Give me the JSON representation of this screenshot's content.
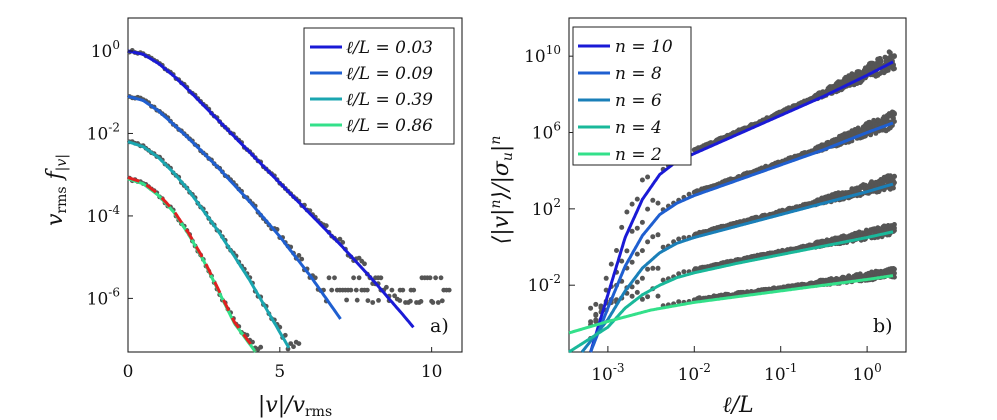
{
  "chart_data": [
    {
      "type": "line",
      "panel_label": "a)",
      "xlabel": "|v|/v_rms",
      "ylabel": "v_rms f_|v|",
      "xlim": [
        0,
        11
      ],
      "ylim_log10": [
        -7.3,
        0.8
      ],
      "yscale": "log",
      "x_ticks": [
        "0",
        "5",
        "10"
      ],
      "y_ticks": [
        "10^0",
        "10^-2",
        "10^-4",
        "10^-6"
      ],
      "legend_position": "top-right",
      "series": [
        {
          "name": "ℓ/L = 0.03",
          "color": "#1a1ad6",
          "x": [
            0,
            0.5,
            1,
            1.5,
            2,
            3,
            4,
            5,
            6,
            7,
            8,
            9,
            9.4
          ],
          "log10y": [
            0,
            -0.08,
            -0.3,
            -0.6,
            -0.95,
            -1.7,
            -2.45,
            -3.2,
            -3.95,
            -4.7,
            -5.5,
            -6.35,
            -6.7
          ]
        },
        {
          "name": "ℓ/L = 0.09",
          "color": "#1f5fd0",
          "x": [
            0,
            0.5,
            1,
            1.5,
            2,
            3,
            4,
            5,
            6,
            7
          ],
          "log10y": [
            -1.1,
            -1.2,
            -1.45,
            -1.78,
            -2.12,
            -2.85,
            -3.65,
            -4.5,
            -5.45,
            -6.5
          ]
        },
        {
          "name": "ℓ/L = 0.39",
          "color": "#1aa6b0",
          "x": [
            0,
            0.5,
            1,
            1.5,
            2,
            3,
            4,
            5.3
          ],
          "log10y": [
            -2.2,
            -2.32,
            -2.58,
            -2.95,
            -3.38,
            -4.4,
            -5.55,
            -7.2
          ]
        },
        {
          "name": "ℓ/L = 0.86",
          "color": "#33e08a",
          "x": [
            0,
            0.5,
            1,
            1.5,
            2,
            2.5,
            3,
            3.5,
            4.2
          ],
          "log10y": [
            -3.1,
            -3.22,
            -3.5,
            -3.9,
            -4.45,
            -5.1,
            -5.85,
            -6.6,
            -7.3
          ]
        }
      ],
      "gaussian_fit": {
        "color": "#e02020",
        "style": "dashed"
      }
    },
    {
      "type": "line",
      "panel_label": "b)",
      "xlabel": "ℓ/L",
      "ylabel": "⟨|v|^n⟩/|σ_u|^n",
      "xscale": "log",
      "yscale": "log",
      "xlim_log10": [
        -3.45,
        0.45
      ],
      "ylim_log10": [
        -5.5,
        12
      ],
      "x_ticks": [
        "10^-3",
        "10^-2",
        "10^-1",
        "10^0"
      ],
      "y_ticks": [
        "10^10",
        "10^6",
        "10^2",
        "10^-2"
      ],
      "legend_position": "top-left",
      "series": [
        {
          "name": "n = 10",
          "color": "#1a1ad6",
          "log10x": [
            -3.2,
            -3,
            -2.8,
            -2.6,
            -2.4,
            -2.2,
            -2,
            -1.5,
            -1,
            -0.5,
            0,
            0.3
          ],
          "log10y": [
            -5.5,
            -2.5,
            0.5,
            2.5,
            3.8,
            4.5,
            4.9,
            5.9,
            6.9,
            7.9,
            9,
            9.7
          ]
        },
        {
          "name": "n = 8",
          "color": "#1f5fd0",
          "log10x": [
            -3.2,
            -3,
            -2.8,
            -2.6,
            -2.4,
            -2.2,
            -2,
            -1.5,
            -1,
            -0.5,
            0,
            0.3
          ],
          "log10y": [
            -5.5,
            -3.2,
            -1,
            0.6,
            1.7,
            2.3,
            2.7,
            3.5,
            4.3,
            5.1,
            6,
            6.5
          ]
        },
        {
          "name": "n = 6",
          "color": "#1a7fb8",
          "log10x": [
            -3.3,
            -3,
            -2.8,
            -2.6,
            -2.4,
            -2.2,
            -2,
            -1.5,
            -1,
            -0.5,
            0,
            0.3
          ],
          "log10y": [
            -5.5,
            -3.8,
            -2.3,
            -1.1,
            -0.3,
            0.2,
            0.5,
            1.1,
            1.7,
            2.3,
            2.9,
            3.3
          ]
        },
        {
          "name": "n = 4",
          "color": "#1ab89a",
          "log10x": [
            -3.45,
            -3,
            -2.8,
            -2.6,
            -2.4,
            -2.2,
            -2,
            -1.5,
            -1,
            -0.5,
            0,
            0.3
          ],
          "log10y": [
            -5.5,
            -4.2,
            -3.2,
            -2.5,
            -2,
            -1.6,
            -1.35,
            -0.85,
            -0.4,
            0.05,
            0.5,
            0.8
          ]
        },
        {
          "name": "n = 2",
          "color": "#33e08a",
          "log10x": [
            -3.45,
            -3,
            -2.5,
            -2,
            -1.5,
            -1,
            -0.5,
            0,
            0.3
          ],
          "log10y": [
            -4.5,
            -3.9,
            -3.3,
            -2.9,
            -2.6,
            -2.3,
            -2,
            -1.7,
            -1.5
          ]
        }
      ]
    }
  ]
}
